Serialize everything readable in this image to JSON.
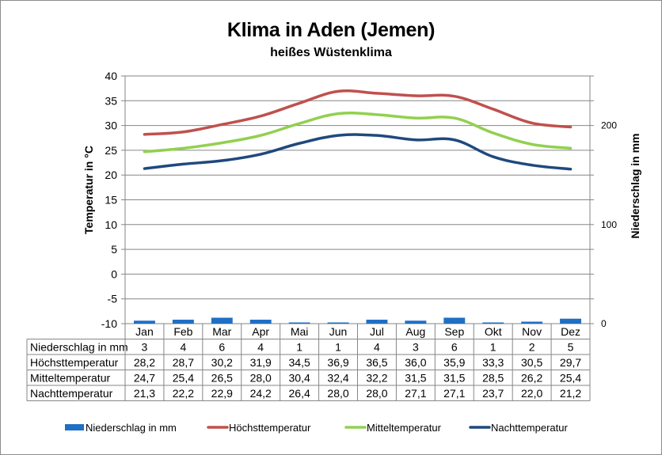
{
  "chart": {
    "title": "Klima in Aden (Jemen)",
    "subtitle": "heißes Wüstenklima",
    "left_axis_label": "Temperatur in °C",
    "right_axis_label": "Niederschlag in mm"
  },
  "chart_data": {
    "type": "bar+line",
    "title": "Klima in Aden (Jemen)",
    "subtitle": "heißes Wüstenklima",
    "categories": [
      "Jan",
      "Feb",
      "Mar",
      "Apr",
      "Mai",
      "Jun",
      "Jul",
      "Aug",
      "Sep",
      "Okt",
      "Nov",
      "Dez"
    ],
    "xlabel": "",
    "ylabel": "Temperatur in °C",
    "ylim": [
      -10,
      40
    ],
    "yticks": [
      -10,
      -5,
      0,
      5,
      10,
      15,
      20,
      25,
      30,
      35,
      40
    ],
    "y2label": "Niederschlag in mm",
    "y2lim": [
      0,
      250
    ],
    "y2ticks_labeled": [
      0,
      100,
      200
    ],
    "grid": true,
    "legend_position": "bottom",
    "series": [
      {
        "name": "Niederschlag in mm",
        "type": "bar",
        "axis": "right",
        "color": "#1f6fc5",
        "values": [
          3,
          4,
          6,
          4,
          1,
          1,
          4,
          3,
          6,
          1,
          2,
          5
        ]
      },
      {
        "name": "Höchsttemperatur",
        "type": "line",
        "axis": "left",
        "color": "#c0504d",
        "values": [
          28.2,
          28.7,
          30.2,
          31.9,
          34.5,
          36.9,
          36.5,
          36.0,
          35.9,
          33.3,
          30.5,
          29.7
        ]
      },
      {
        "name": "Mitteltemperatur",
        "type": "line",
        "axis": "left",
        "color": "#92d050",
        "values": [
          24.7,
          25.4,
          26.5,
          28.0,
          30.4,
          32.4,
          32.2,
          31.5,
          31.5,
          28.5,
          26.2,
          25.4
        ]
      },
      {
        "name": "Nachttemperatur",
        "type": "line",
        "axis": "left",
        "color": "#1f497d",
        "values": [
          21.3,
          22.2,
          22.9,
          24.2,
          26.4,
          28.0,
          28.0,
          27.1,
          27.1,
          23.7,
          22.0,
          21.2
        ]
      }
    ]
  },
  "table": {
    "rows": [
      {
        "label": "Niederschlag in mm",
        "values": [
          "3",
          "4",
          "6",
          "4",
          "1",
          "1",
          "4",
          "3",
          "6",
          "1",
          "2",
          "5"
        ]
      },
      {
        "label": "Höchsttemperatur",
        "values": [
          "28,2",
          "28,7",
          "30,2",
          "31,9",
          "34,5",
          "36,9",
          "36,5",
          "36,0",
          "35,9",
          "33,3",
          "30,5",
          "29,7"
        ]
      },
      {
        "label": "Mitteltemperatur",
        "values": [
          "24,7",
          "25,4",
          "26,5",
          "28,0",
          "30,4",
          "32,4",
          "32,2",
          "31,5",
          "31,5",
          "28,5",
          "26,2",
          "25,4"
        ]
      },
      {
        "label": "Nachttemperatur",
        "values": [
          "21,3",
          "22,2",
          "22,9",
          "24,2",
          "26,4",
          "28,0",
          "28,0",
          "27,1",
          "27,1",
          "23,7",
          "22,0",
          "21,2"
        ]
      }
    ]
  },
  "legend": [
    {
      "label": "Niederschlag in mm",
      "kind": "bar",
      "color": "#1f6fc5"
    },
    {
      "label": "Höchsttemperatur",
      "kind": "line",
      "color": "#c0504d"
    },
    {
      "label": "Mitteltemperatur",
      "kind": "line",
      "color": "#92d050"
    },
    {
      "label": "Nachttemperatur",
      "kind": "line",
      "color": "#1f497d"
    }
  ]
}
